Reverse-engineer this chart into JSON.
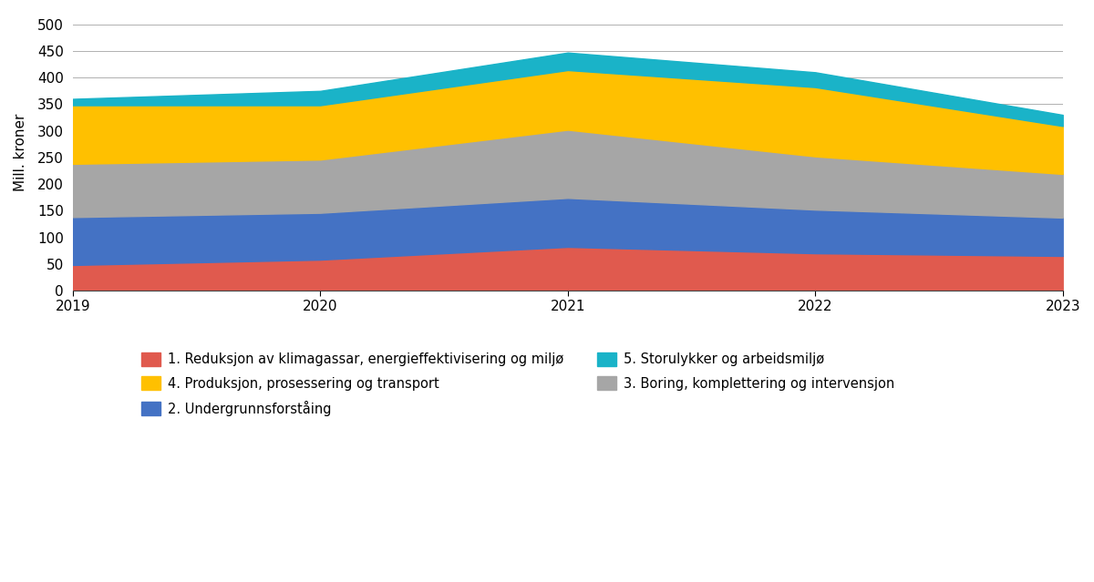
{
  "years": [
    2019,
    2020,
    2021,
    2022,
    2023
  ],
  "series": {
    "red": [
      48,
      58,
      82,
      70,
      65
    ],
    "blue": [
      90,
      88,
      92,
      82,
      72
    ],
    "gray": [
      100,
      100,
      128,
      100,
      82
    ],
    "yellow": [
      110,
      102,
      112,
      130,
      90
    ],
    "teal": [
      12,
      27,
      33,
      28,
      21
    ]
  },
  "colors": {
    "red": "#e05a4e",
    "blue": "#4472c4",
    "gray": "#a6a6a6",
    "yellow": "#ffc000",
    "teal": "#1ab3c8"
  },
  "legend_labels": {
    "red": "1. Reduksjon av klimagassar, energieffektivisering og miljø",
    "blue": "2. Undergrunnsforståing",
    "gray": "3. Boring, komplettering og intervensjon",
    "yellow": "4. Produksjon, prosessering og transport",
    "teal": "5. Storulykker og arbeidsmiljø"
  },
  "ylabel": "Mill. kroner",
  "ylim": [
    0,
    520
  ],
  "yticks": [
    0,
    50,
    100,
    150,
    200,
    250,
    300,
    350,
    400,
    450,
    500
  ],
  "xlim": [
    2019,
    2023
  ],
  "xticks": [
    2019,
    2020,
    2021,
    2022,
    2023
  ],
  "background_color": "#ffffff",
  "grid_color": "#b0b0b0"
}
